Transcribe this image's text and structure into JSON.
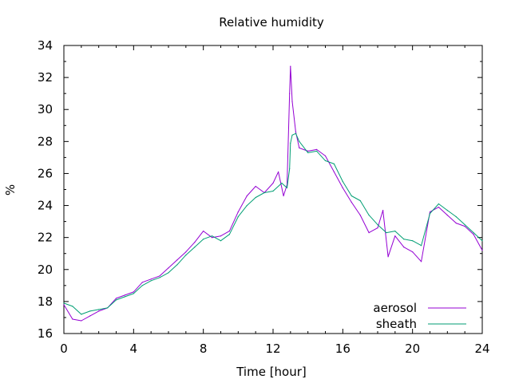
{
  "chart_data": {
    "type": "line",
    "title": "Relative humidity",
    "xlabel": "Time [hour]",
    "ylabel": "%",
    "xlim": [
      0,
      24
    ],
    "ylim": [
      16,
      34
    ],
    "xticks": [
      "0",
      "4",
      "8",
      "12",
      "16",
      "20",
      "24"
    ],
    "yticks": [
      "16",
      "18",
      "20",
      "22",
      "24",
      "26",
      "28",
      "30",
      "32",
      "34"
    ],
    "grid": false,
    "legend_position": "bottom-right",
    "series": [
      {
        "name": "aerosol",
        "color": "#9400d3",
        "x": [
          0,
          0.5,
          1,
          1.5,
          2,
          2.5,
          3,
          3.5,
          4,
          4.5,
          5,
          5.5,
          6,
          6.5,
          7,
          7.5,
          8,
          8.5,
          9,
          9.5,
          10,
          10.5,
          11,
          11.5,
          12,
          12.3,
          12.6,
          12.8,
          12.95,
          13.0,
          13.1,
          13.3,
          13.5,
          14,
          14.5,
          15,
          15.5,
          16,
          16.5,
          17,
          17.5,
          18,
          18.3,
          18.6,
          19,
          19.5,
          20,
          20.5,
          21,
          21.5,
          22,
          22.5,
          23,
          23.5,
          24
        ],
        "y": [
          17.8,
          16.9,
          16.8,
          17.1,
          17.4,
          17.6,
          18.2,
          18.4,
          18.6,
          19.2,
          19.4,
          19.6,
          20.1,
          20.6,
          21.1,
          21.7,
          22.4,
          22.0,
          22.1,
          22.4,
          23.6,
          24.6,
          25.2,
          24.8,
          25.4,
          26.1,
          24.6,
          25.3,
          31.0,
          32.7,
          30.5,
          28.6,
          27.6,
          27.4,
          27.5,
          27.1,
          26.1,
          25.1,
          24.2,
          23.4,
          22.3,
          22.6,
          23.7,
          20.8,
          22.1,
          21.4,
          21.1,
          20.5,
          23.6,
          23.9,
          23.4,
          22.9,
          22.7,
          22.2,
          21.2
        ]
      },
      {
        "name": "sheath",
        "color": "#009e73",
        "x": [
          0,
          0.5,
          1,
          1.5,
          2,
          2.5,
          3,
          3.5,
          4,
          4.5,
          5,
          5.5,
          6,
          6.5,
          7,
          7.5,
          8,
          8.5,
          9,
          9.5,
          10,
          10.5,
          11,
          11.5,
          12,
          12.5,
          12.8,
          12.95,
          13.0,
          13.1,
          13.3,
          13.5,
          14,
          14.5,
          15,
          15.5,
          16,
          16.5,
          17,
          17.5,
          18,
          18.5,
          19,
          19.5,
          20,
          20.5,
          21,
          21.5,
          22,
          22.5,
          23,
          23.5,
          24
        ],
        "y": [
          17.9,
          17.7,
          17.2,
          17.4,
          17.5,
          17.6,
          18.1,
          18.3,
          18.5,
          19.0,
          19.3,
          19.5,
          19.8,
          20.3,
          20.9,
          21.4,
          21.9,
          22.1,
          21.8,
          22.2,
          23.3,
          24.0,
          24.5,
          24.8,
          24.9,
          25.4,
          25.1,
          26.3,
          27.9,
          28.4,
          28.5,
          28.0,
          27.3,
          27.4,
          26.8,
          26.6,
          25.5,
          24.6,
          24.3,
          23.4,
          22.8,
          22.3,
          22.4,
          21.9,
          21.8,
          21.5,
          23.5,
          24.1,
          23.7,
          23.3,
          22.8,
          22.3,
          21.8
        ]
      }
    ]
  }
}
